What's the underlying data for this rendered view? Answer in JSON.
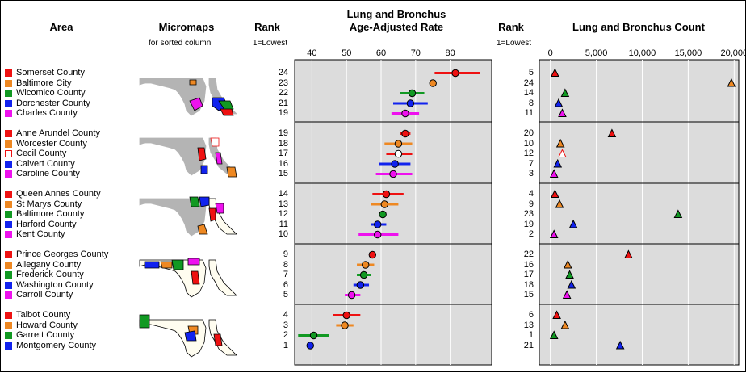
{
  "headers": {
    "area": "Area",
    "micromaps": "Micromaps",
    "micromaps_sub": "for sorted column",
    "rank": "Rank",
    "rank_sub": "1=Lowest",
    "rate_title_1": "Lung and Bronchus",
    "rate_title_2": "Age-Adjusted Rate",
    "rank2": "Rank",
    "rank2_sub": "1=Lowest",
    "count_title": "Lung and Bronchus Count"
  },
  "colors": {
    "red": "#ee1111",
    "orange": "#ee8822",
    "green": "#119922",
    "blue": "#1122ee",
    "magenta": "#ee11ee",
    "panel_bg": "#dcdcdc",
    "map_gray": "#b4b4b4"
  },
  "chart_data": [
    {
      "type": "scatter",
      "title": "Lung and Bronchus Age-Adjusted Rate",
      "xlim": [
        35,
        92
      ],
      "xticks": [
        40,
        50,
        60,
        70,
        80
      ],
      "tick_labels": [
        "40",
        "50",
        "60",
        "70",
        "80"
      ],
      "groups": [
        [
          {
            "area": "Somerset County",
            "rate": 81.5,
            "lo": 75.5,
            "hi": 88.5,
            "rank": "24",
            "count_rank": "5",
            "count": 500,
            "color": "red"
          },
          {
            "area": "Baltimore City",
            "rate": 75.0,
            "lo": 74.0,
            "hi": 76.0,
            "rank": "23",
            "count_rank": "24",
            "count": 19700,
            "color": "orange"
          },
          {
            "area": "Wicomico County",
            "rate": 69.0,
            "lo": 65.5,
            "hi": 72.5,
            "rank": "22",
            "count_rank": "14",
            "count": 1600,
            "color": "green"
          },
          {
            "area": "Dorchester County",
            "rate": 68.5,
            "lo": 63.5,
            "hi": 73.5,
            "rank": "21",
            "count_rank": "8",
            "count": 900,
            "color": "blue"
          },
          {
            "area": "Charles County",
            "rate": 67.0,
            "lo": 63.0,
            "hi": 71.0,
            "rank": "19",
            "count_rank": "11",
            "count": 1300,
            "color": "magenta"
          }
        ],
        [
          {
            "area": "Anne Arundel County",
            "rate": 67.0,
            "lo": 65.5,
            "hi": 68.5,
            "rank": "19",
            "count_rank": "20",
            "count": 6700,
            "color": "red"
          },
          {
            "area": "Worcester County",
            "rate": 65.0,
            "lo": 61.0,
            "hi": 69.0,
            "rank": "18",
            "count_rank": "10",
            "count": 1100,
            "color": "orange"
          },
          {
            "area": "Cecil County",
            "rate": 65.0,
            "lo": 61.5,
            "hi": 69.0,
            "rank": "17",
            "count_rank": "12",
            "count": 1300,
            "color": "red",
            "hollow": true
          },
          {
            "area": "Calvert County",
            "rate": 64.0,
            "lo": 59.5,
            "hi": 68.5,
            "rank": "16",
            "count_rank": "7",
            "count": 800,
            "color": "blue"
          },
          {
            "area": "Caroline County",
            "rate": 63.5,
            "lo": 58.5,
            "hi": 69.0,
            "rank": "15",
            "count_rank": "3",
            "count": 400,
            "color": "magenta"
          }
        ],
        [
          {
            "area": "Queen Annes County",
            "rate": 61.5,
            "lo": 57.5,
            "hi": 66.5,
            "rank": "14",
            "count_rank": "4",
            "count": 500,
            "color": "red"
          },
          {
            "area": "St Marys County",
            "rate": 61.0,
            "lo": 57.0,
            "hi": 65.0,
            "rank": "13",
            "count_rank": "9",
            "count": 1000,
            "color": "orange"
          },
          {
            "area": "Baltimore County",
            "rate": 60.5,
            "lo": 59.5,
            "hi": 61.5,
            "rank": "12",
            "count_rank": "23",
            "count": 13900,
            "color": "green"
          },
          {
            "area": "Harford County",
            "rate": 59.0,
            "lo": 57.0,
            "hi": 61.5,
            "rank": "11",
            "count_rank": "19",
            "count": 2500,
            "color": "blue"
          },
          {
            "area": "Kent County",
            "rate": 59.0,
            "lo": 53.5,
            "hi": 65.0,
            "rank": "10",
            "count_rank": "2",
            "count": 400,
            "color": "magenta"
          }
        ],
        [
          {
            "area": "Prince Georges County",
            "rate": 57.5,
            "lo": 56.5,
            "hi": 58.5,
            "rank": "9",
            "count_rank": "22",
            "count": 8500,
            "color": "red"
          },
          {
            "area": "Allegany County",
            "rate": 55.5,
            "lo": 53.0,
            "hi": 58.0,
            "rank": "8",
            "count_rank": "16",
            "count": 1900,
            "color": "orange"
          },
          {
            "area": "Frederick County",
            "rate": 55.0,
            "lo": 53.0,
            "hi": 57.0,
            "rank": "7",
            "count_rank": "17",
            "count": 2100,
            "color": "green"
          },
          {
            "area": "Washington County",
            "rate": 54.0,
            "lo": 52.0,
            "hi": 56.5,
            "rank": "6",
            "count_rank": "18",
            "count": 2300,
            "color": "blue"
          },
          {
            "area": "Carroll County",
            "rate": 51.5,
            "lo": 49.5,
            "hi": 54.0,
            "rank": "5",
            "count_rank": "15",
            "count": 1800,
            "color": "magenta"
          }
        ],
        [
          {
            "area": "Talbot County",
            "rate": 50.0,
            "lo": 46.0,
            "hi": 54.0,
            "rank": "4",
            "count_rank": "6",
            "count": 700,
            "color": "red"
          },
          {
            "area": "Howard County",
            "rate": 49.5,
            "lo": 47.0,
            "hi": 52.0,
            "rank": "3",
            "count_rank": "13",
            "count": 1600,
            "color": "orange"
          },
          {
            "area": "Garrett County",
            "rate": 40.5,
            "lo": 36.0,
            "hi": 45.0,
            "rank": "2",
            "count_rank": "1",
            "count": 400,
            "color": "green"
          },
          {
            "area": "Montgomery County",
            "rate": 39.5,
            "lo": 38.5,
            "hi": 40.5,
            "rank": "1",
            "count_rank": "21",
            "count": 7600,
            "color": "blue"
          }
        ]
      ]
    },
    {
      "type": "scatter",
      "title": "Lung and Bronchus Count",
      "xlim": [
        -1200,
        20500
      ],
      "xticks": [
        0,
        5000,
        10000,
        15000,
        20000
      ],
      "tick_labels": [
        "0",
        "5,000",
        "10,000",
        "15,000",
        "20,000"
      ]
    }
  ]
}
